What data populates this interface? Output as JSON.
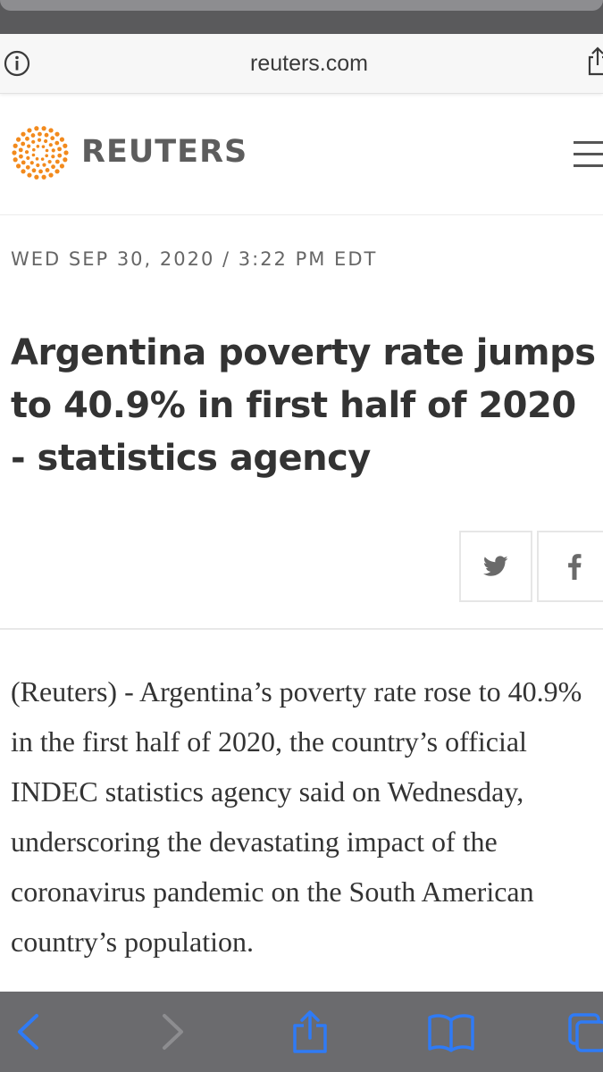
{
  "browser": {
    "url": "reuters.com",
    "icons": {
      "info": "info-icon",
      "share_top": "share-icon",
      "back": "chevron-left-icon",
      "forward": "chevron-right-icon",
      "share": "share-icon",
      "bookmarks": "book-icon",
      "tabs": "tabs-icon"
    },
    "colors": {
      "toolbar_bg": "#6b6b6e",
      "toolbar_icon": "#2f7bf5",
      "toolbar_icon_disabled": "#8d8d90"
    }
  },
  "site": {
    "logo_text": "REUTERS",
    "logo_color": "#f28a1d",
    "menu_icon": "hamburger-menu-icon"
  },
  "article": {
    "dateline": "WED SEP 30, 2020 / 3:22 PM EDT",
    "headline": "Argentina poverty rate jumps to 40.9% in first half of 2020 - statistics agency",
    "body": "(Reuters) - Argentina’s poverty rate rose to 40.9% in the first half of 2020, the country’s official INDEC statistics agency said on Wednesday, underscoring the devastating impact of the coronavirus pandemic on the South American country’s population.",
    "share_icons": [
      "twitter-icon",
      "facebook-icon"
    ]
  }
}
